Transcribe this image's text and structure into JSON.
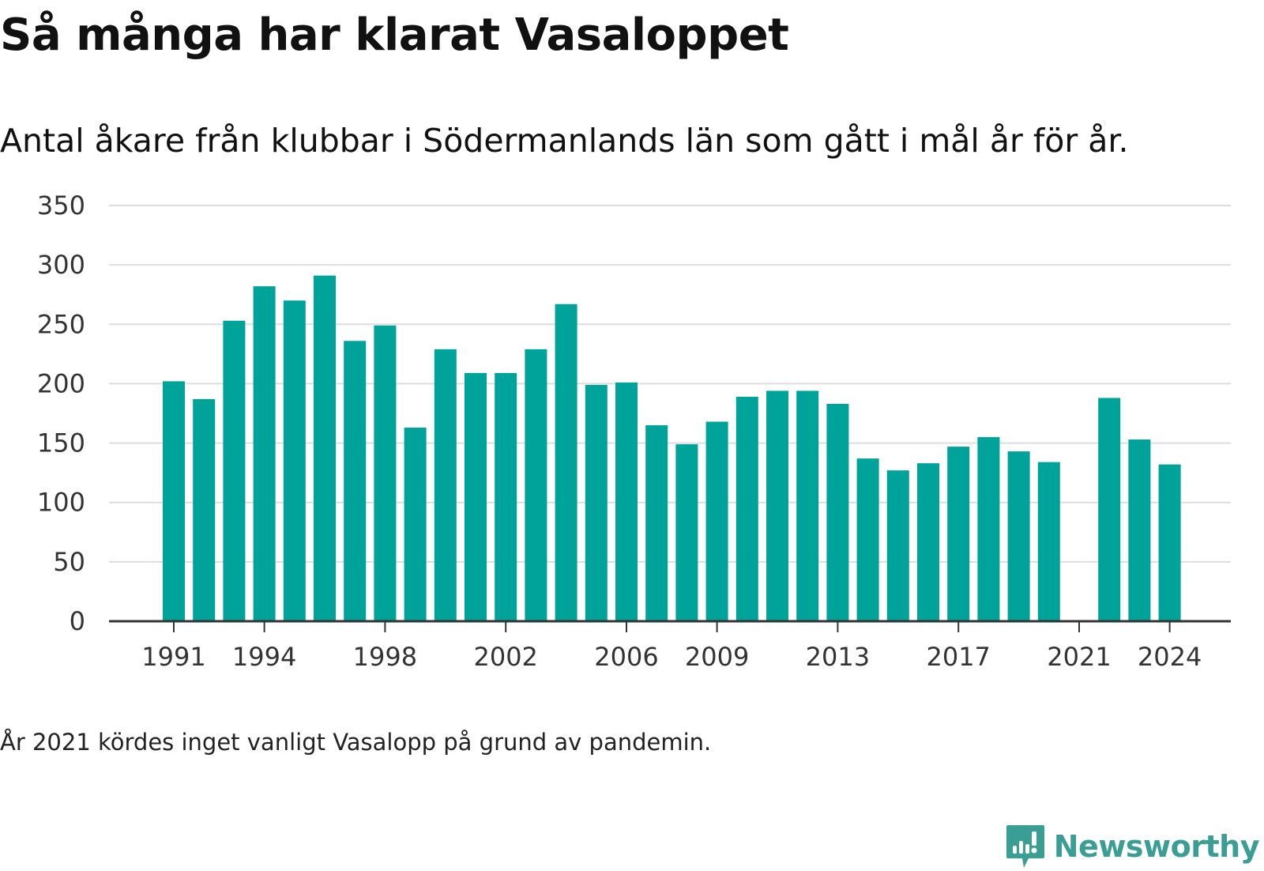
{
  "title": "Så många har klarat Vasaloppet",
  "subtitle": "Antal åkare från klubbar i Södermanlands län som gått i mål år för år.",
  "footnote": "År 2021 kördes inget vanligt Vasalopp på grund av pandemin.",
  "brand": {
    "name": "Newsworthy",
    "icon": "newsworthy-logo-icon"
  },
  "colors": {
    "bar": "#00a39a",
    "grid": "#dddddd",
    "axis": "#333333",
    "brand": "#3a9e95"
  },
  "chart_data": {
    "type": "bar",
    "categories": [
      "1991",
      "1992",
      "1993",
      "1994",
      "1995",
      "1996",
      "1997",
      "1998",
      "1999",
      "2000",
      "2001",
      "2002",
      "2003",
      "2004",
      "2005",
      "2006",
      "2007",
      "2008",
      "2009",
      "2010",
      "2011",
      "2012",
      "2013",
      "2014",
      "2015",
      "2016",
      "2017",
      "2018",
      "2019",
      "2020",
      "2021",
      "2022",
      "2023",
      "2024"
    ],
    "values": [
      202,
      187,
      253,
      282,
      270,
      291,
      236,
      249,
      163,
      229,
      209,
      209,
      229,
      267,
      199,
      201,
      165,
      149,
      168,
      189,
      194,
      194,
      183,
      137,
      127,
      133,
      147,
      155,
      143,
      134,
      null,
      188,
      153,
      132
    ],
    "xticks": [
      "1991",
      "1994",
      "1998",
      "2002",
      "2006",
      "2009",
      "2013",
      "2017",
      "2021",
      "2024"
    ],
    "yticks": [
      0,
      50,
      100,
      150,
      200,
      250,
      300,
      350
    ],
    "ylim": [
      0,
      350
    ],
    "xlabel": "",
    "ylabel": "",
    "grid": true,
    "legend": "none"
  }
}
